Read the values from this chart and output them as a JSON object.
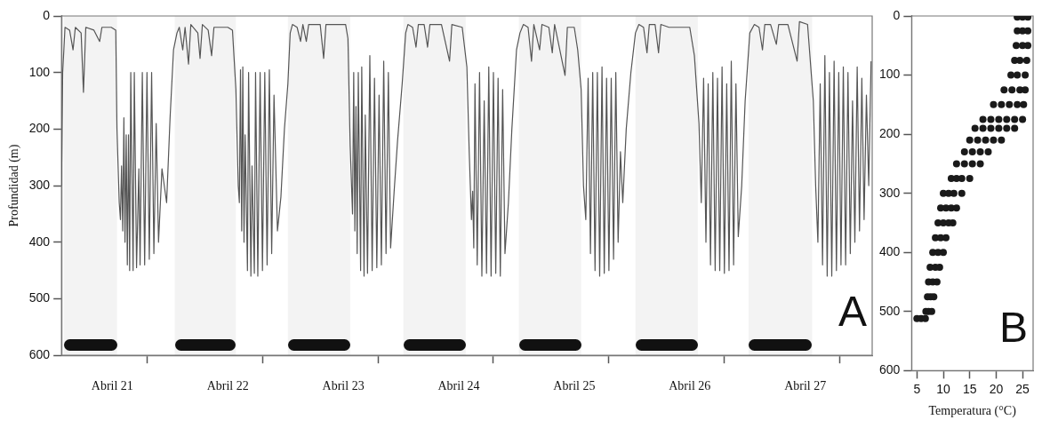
{
  "chart_data": [
    {
      "type": "line",
      "ylabel": "Profundidad (m)",
      "annotations": [
        "A"
      ],
      "xlim": [
        "--04-21T06:14",
        "--04-28T06:43"
      ],
      "ylim": [
        600,
        0
      ],
      "yticks": [
        0,
        100,
        200,
        300,
        400,
        500,
        600
      ],
      "xticks": [
        {
          "value": "--04-21T16:48",
          "label": "Abril 21"
        },
        {
          "value": "--04-22T00:00",
          "label": null
        },
        {
          "value": "--04-22T16:48",
          "label": "Abril 22"
        },
        {
          "value": "--04-23T00:00",
          "label": null
        },
        {
          "value": "--04-23T16:48",
          "label": "Abril 23"
        },
        {
          "value": "--04-24T00:00",
          "label": null
        },
        {
          "value": "--04-24T16:48",
          "label": "Abril 24"
        },
        {
          "value": "--04-25T00:00",
          "label": null
        },
        {
          "value": "--04-25T16:48",
          "label": "Abril 25"
        },
        {
          "value": "--04-26T00:00",
          "label": null
        },
        {
          "value": "--04-26T16:48",
          "label": "Abril 26"
        },
        {
          "value": "--04-27T00:00",
          "label": null
        },
        {
          "value": "--04-27T16:48",
          "label": "Abril 27"
        },
        {
          "value": "--04-28T00:00",
          "label": null
        }
      ],
      "grid": false,
      "legend": false,
      "marker": "none",
      "line_style": "solid",
      "bands": [
        {
          "axis": "x",
          "from": "--04-21T06:43",
          "to": "--04-21T17:46",
          "color": "#111111"
        },
        {
          "axis": "x",
          "from": "--04-22T05:46",
          "to": "--04-22T18:29",
          "color": "#111111"
        },
        {
          "axis": "x",
          "from": "--04-23T05:17",
          "to": "--04-23T18:14",
          "color": "#111111"
        },
        {
          "axis": "x",
          "from": "--04-24T05:17",
          "to": "--04-24T18:14",
          "color": "#111111"
        },
        {
          "axis": "x",
          "from": "--04-25T05:17",
          "to": "--04-25T18:14",
          "color": "#111111"
        },
        {
          "axis": "x",
          "from": "--04-26T05:31",
          "to": "--04-26T18:29",
          "color": "#111111"
        },
        {
          "axis": "x",
          "from": "--04-27T05:02",
          "to": "--04-27T18:14",
          "color": "#111111"
        }
      ],
      "series": [
        {
          "color": "#555555",
          "x": [
            "--04-21T06:14",
            "--04-21T06:29",
            "--04-21T06:58",
            "--04-21T07:55",
            "--04-21T08:38",
            "--04-21T09:07",
            "--04-21T10:19",
            "--04-21T10:48",
            "--04-21T11:17",
            "--04-21T12:58",
            "--04-21T14:10",
            "--04-21T14:38",
            "--04-21T16:34",
            "--04-21T17:31",
            "--04-21T17:46",
            "--04-21T18:14",
            "--04-21T18:29",
            "--04-21T18:43",
            "--04-21T18:58",
            "--04-21T19:12",
            "--04-21T19:26",
            "--04-21T19:41",
            "--04-21T19:55",
            "--04-21T20:10",
            "--04-21T20:24",
            "--04-21T20:38",
            "--04-21T21:07",
            "--04-21T21:22",
            "--04-21T21:50",
            "--04-21T22:19",
            "--04-21T22:34",
            "--04-21T23:02",
            "--04-21T23:31",
            "--04-22T00:00",
            "--04-22T00:29",
            "--04-22T00:58",
            "--04-22T01:26",
            "--04-22T01:55",
            "--04-22T02:24",
            "--04-22T03:07",
            "--04-22T04:05",
            "--04-22T04:48",
            "--04-22T05:31",
            "--04-22T06:14",
            "--04-22T06:43",
            "--04-22T07:26",
            "--04-22T07:55",
            "--04-22T08:38",
            "--04-22T09:07",
            "--04-22T10:34",
            "--04-22T11:02",
            "--04-22T11:31",
            "--04-22T12:43",
            "--04-22T13:26",
            "--04-22T13:55",
            "--04-22T16:48",
            "--04-22T17:46",
            "--04-22T18:29",
            "--04-22T18:58",
            "--04-22T19:12",
            "--04-22T19:26",
            "--04-22T19:41",
            "--04-22T19:55",
            "--04-22T20:10",
            "--04-22T20:24",
            "--04-22T20:53",
            "--04-22T21:07",
            "--04-22T21:36",
            "--04-22T21:50",
            "--04-22T22:19",
            "--04-22T22:34",
            "--04-22T23:02",
            "--04-22T23:31",
            "--04-23T00:00",
            "--04-23T00:29",
            "--04-23T00:58",
            "--04-23T01:26",
            "--04-23T01:55",
            "--04-23T02:24",
            "--04-23T03:07",
            "--04-23T03:50",
            "--04-23T04:34",
            "--04-23T05:17",
            "--04-23T05:46",
            "--04-23T06:14",
            "--04-23T07:12",
            "--04-23T07:55",
            "--04-23T08:24",
            "--04-23T09:07",
            "--04-23T09:36",
            "--04-23T12:00",
            "--04-23T12:43",
            "--04-23T13:12",
            "--04-23T14:53",
            "--04-23T17:17",
            "--04-23T17:46",
            "--04-23T18:14",
            "--04-23T18:43",
            "--04-23T18:58",
            "--04-23T19:12",
            "--04-23T19:26",
            "--04-23T19:41",
            "--04-23T19:55",
            "--04-23T20:24",
            "--04-23T20:38",
            "--04-23T21:07",
            "--04-23T21:22",
            "--04-23T21:50",
            "--04-23T22:19",
            "--04-23T22:48",
            "--04-23T23:17",
            "--04-23T23:46",
            "--04-24T00:14",
            "--04-24T00:43",
            "--04-24T01:12",
            "--04-24T01:41",
            "--04-24T02:10",
            "--04-24T02:38",
            "--04-24T03:22",
            "--04-24T04:05",
            "--04-24T05:02",
            "--04-24T05:46",
            "--04-24T06:14",
            "--04-24T07:12",
            "--04-24T07:55",
            "--04-24T08:24",
            "--04-24T09:36",
            "--04-24T10:19",
            "--04-24T10:48",
            "--04-24T13:12",
            "--04-24T14:53",
            "--04-24T15:22",
            "--04-24T17:31",
            "--04-24T18:29",
            "--04-24T18:58",
            "--04-24T19:26",
            "--04-24T19:41",
            "--04-24T19:55",
            "--04-24T20:10",
            "--04-24T20:38",
            "--04-24T21:07",
            "--04-24T21:36",
            "--04-24T22:05",
            "--04-24T22:34",
            "--04-24T23:02",
            "--04-24T23:31",
            "--04-25T00:00",
            "--04-25T00:29",
            "--04-25T00:58",
            "--04-25T01:26",
            "--04-25T01:55",
            "--04-25T02:24",
            "--04-25T03:07",
            "--04-25T03:50",
            "--04-25T04:48",
            "--04-25T05:31",
            "--04-25T06:14",
            "--04-25T07:12",
            "--04-25T07:55",
            "--04-25T08:24",
            "--04-25T09:36",
            "--04-25T10:05",
            "--04-25T11:31",
            "--04-25T12:14",
            "--04-25T12:43",
            "--04-25T14:53",
            "--04-25T15:22",
            "--04-25T16:48",
            "--04-25T17:31",
            "--04-25T18:14",
            "--04-25T18:43",
            "--04-25T19:12",
            "--04-25T19:41",
            "--04-25T20:10",
            "--04-25T20:38",
            "--04-25T21:07",
            "--04-25T21:36",
            "--04-25T22:05",
            "--04-25T22:34",
            "--04-25T23:02",
            "--04-25T23:31",
            "--04-26T00:00",
            "--04-26T00:29",
            "--04-26T00:58",
            "--04-26T01:26",
            "--04-26T01:55",
            "--04-26T02:24",
            "--04-26T02:53",
            "--04-26T03:36",
            "--04-26T04:34",
            "--04-26T05:31",
            "--04-26T06:14",
            "--04-26T07:12",
            "--04-26T07:55",
            "--04-26T08:24",
            "--04-26T09:36",
            "--04-26T10:19",
            "--04-26T10:48",
            "--04-26T12:29",
            "--04-26T13:12",
            "--04-26T16:48",
            "--04-26T17:46",
            "--04-26T18:43",
            "--04-26T19:12",
            "--04-26T19:41",
            "--04-26T20:10",
            "--04-26T20:38",
            "--04-26T21:07",
            "--04-26T21:36",
            "--04-26T22:05",
            "--04-26T22:34",
            "--04-26T23:02",
            "--04-26T23:31",
            "--04-27T00:00",
            "--04-27T00:29",
            "--04-27T00:58",
            "--04-27T01:26",
            "--04-27T01:55",
            "--04-27T02:24",
            "--04-27T02:53",
            "--04-27T03:36",
            "--04-27T04:19",
            "--04-27T05:17",
            "--04-27T06:14",
            "--04-27T07:12",
            "--04-27T07:55",
            "--04-27T08:24",
            "--04-27T09:36",
            "--04-27T10:48",
            "--04-27T11:17",
            "--04-27T13:12",
            "--04-27T15:07",
            "--04-27T15:36",
            "--04-27T17:17",
            "--04-27T18:29",
            "--04-27T18:58",
            "--04-27T19:26",
            "--04-27T19:55",
            "--04-27T20:24",
            "--04-27T20:53",
            "--04-27T21:22",
            "--04-27T21:50",
            "--04-27T22:19",
            "--04-27T22:48",
            "--04-27T23:17",
            "--04-27T23:46",
            "--04-28T00:14",
            "--04-28T00:43",
            "--04-28T01:12",
            "--04-28T01:41",
            "--04-28T02:10",
            "--04-28T02:38",
            "--04-28T03:07",
            "--04-28T03:36",
            "--04-28T04:05",
            "--04-28T04:34",
            "--04-28T05:02",
            "--04-28T05:31",
            "--04-28T06:00",
            "--04-28T06:29"
          ],
          "values": [
            300,
            100,
            20,
            25,
            60,
            20,
            30,
            135,
            20,
            25,
            45,
            20,
            20,
            25,
            200,
            330,
            360,
            265,
            380,
            180,
            400,
            210,
            440,
            210,
            450,
            100,
            450,
            100,
            445,
            270,
            440,
            100,
            440,
            100,
            430,
            100,
            420,
            190,
            400,
            270,
            330,
            180,
            60,
            30,
            20,
            60,
            20,
            85,
            15,
            30,
            75,
            15,
            25,
            70,
            20,
            20,
            25,
            130,
            300,
            330,
            95,
            380,
            90,
            400,
            210,
            450,
            100,
            460,
            265,
            455,
            100,
            460,
            100,
            450,
            100,
            440,
            95,
            420,
            140,
            380,
            320,
            200,
            120,
            30,
            15,
            20,
            45,
            15,
            45,
            15,
            15,
            75,
            15,
            15,
            15,
            40,
            230,
            350,
            100,
            380,
            160,
            420,
            100,
            450,
            90,
            460,
            175,
            455,
            70,
            450,
            110,
            445,
            140,
            440,
            80,
            420,
            100,
            410,
            310,
            220,
            120,
            30,
            15,
            20,
            55,
            15,
            15,
            55,
            15,
            15,
            80,
            15,
            20,
            90,
            240,
            360,
            310,
            410,
            120,
            440,
            100,
            460,
            150,
            455,
            90,
            460,
            100,
            455,
            110,
            460,
            130,
            420,
            330,
            200,
            60,
            30,
            15,
            20,
            80,
            15,
            60,
            15,
            20,
            65,
            15,
            105,
            20,
            20,
            60,
            130,
            300,
            360,
            110,
            420,
            100,
            450,
            100,
            460,
            90,
            455,
            110,
            450,
            110,
            430,
            100,
            400,
            240,
            330,
            200,
            100,
            30,
            15,
            20,
            65,
            15,
            15,
            65,
            15,
            20,
            20,
            20,
            70,
            190,
            330,
            110,
            400,
            120,
            440,
            100,
            450,
            110,
            450,
            90,
            455,
            120,
            450,
            80,
            440,
            120,
            390,
            300,
            150,
            30,
            15,
            20,
            60,
            15,
            15,
            50,
            15,
            15,
            80,
            10,
            15,
            150,
            300,
            400,
            120,
            440,
            70,
            460,
            100,
            460,
            80,
            450,
            100,
            440,
            90,
            440,
            100,
            420,
            150,
            400,
            90,
            380,
            110,
            360,
            140,
            300,
            80
          ]
        }
      ]
    },
    {
      "type": "scatter",
      "xlabel": "Temperatura (°C)",
      "annotations": [
        "B"
      ],
      "xlim": [
        4,
        27
      ],
      "ylim": [
        600,
        0
      ],
      "xticks": [
        5,
        10,
        15,
        20,
        25
      ],
      "yticks": [
        0,
        100,
        200,
        300,
        400,
        500,
        600
      ],
      "grid": false,
      "legend": false,
      "marker": "circle",
      "series": [
        {
          "color": "#1a1a1a",
          "x": [
            24,
            25,
            26,
            24,
            25,
            26,
            23.8,
            25,
            26,
            23.5,
            24.5,
            25.8,
            22.8,
            24,
            25.5,
            21.5,
            23,
            24.5,
            25.5,
            19.5,
            21,
            22.5,
            24,
            25.2,
            17.5,
            19,
            20.5,
            22,
            23.5,
            25,
            16,
            17.5,
            19,
            20.5,
            22,
            23.5,
            15,
            16.5,
            18,
            19.5,
            21,
            14,
            15.5,
            17,
            18.5,
            12.5,
            14,
            15.5,
            17,
            11.5,
            12.5,
            13.5,
            15,
            10,
            11,
            12,
            13.5,
            9.5,
            10.5,
            11.5,
            12.5,
            9,
            10,
            11,
            11.8,
            8.5,
            9.5,
            10.5,
            8,
            9,
            10,
            7.5,
            8.5,
            9.3,
            7.2,
            8,
            8.8,
            7,
            7.6,
            8.2,
            6.7,
            7.2,
            7.8,
            5,
            5.8,
            6.6
          ],
          "values": [
            2,
            2,
            2,
            25,
            25,
            25,
            50,
            50,
            50,
            75,
            75,
            75,
            100,
            100,
            100,
            125,
            125,
            125,
            125,
            150,
            150,
            150,
            150,
            150,
            175,
            175,
            175,
            175,
            175,
            175,
            190,
            190,
            190,
            190,
            190,
            190,
            210,
            210,
            210,
            210,
            210,
            230,
            230,
            230,
            230,
            250,
            250,
            250,
            250,
            275,
            275,
            275,
            275,
            300,
            300,
            300,
            300,
            325,
            325,
            325,
            325,
            350,
            350,
            350,
            350,
            375,
            375,
            375,
            400,
            400,
            400,
            425,
            425,
            425,
            450,
            450,
            450,
            475,
            475,
            475,
            500,
            500,
            500,
            512,
            512,
            512
          ]
        }
      ]
    }
  ]
}
